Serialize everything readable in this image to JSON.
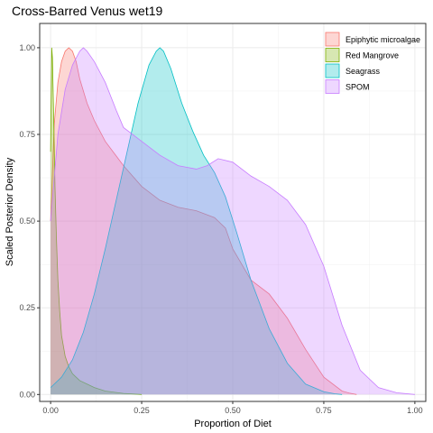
{
  "chart_data": {
    "type": "area",
    "title": "Cross-Barred Venus wet19",
    "xlabel": "Proportion of Diet",
    "ylabel": "Scaled Posterior Density",
    "xlim": [
      -0.03,
      1.03
    ],
    "ylim": [
      -0.02,
      1.07
    ],
    "x_ticks": [
      0,
      0.25,
      0.5,
      0.75,
      1.0
    ],
    "x_tick_labels": [
      "0.00",
      "0.25",
      "0.50",
      "0.75",
      "1.00"
    ],
    "y_ticks": [
      0,
      0.25,
      0.5,
      0.75,
      1.0
    ],
    "y_tick_labels": [
      "0.00",
      "0.25",
      "0.50",
      "0.75",
      "1.00"
    ],
    "grid": true,
    "legend_position": "top-right",
    "series": [
      {
        "name": "Epiphytic microalgae",
        "fill": "#F8766D",
        "stroke": "#F8766D",
        "x": [
          0.0,
          0.01,
          0.02,
          0.03,
          0.04,
          0.05,
          0.06,
          0.07,
          0.08,
          0.1,
          0.12,
          0.15,
          0.2,
          0.25,
          0.3,
          0.35,
          0.4,
          0.45,
          0.48,
          0.5,
          0.55,
          0.6,
          0.65,
          0.7,
          0.75,
          0.8,
          0.82,
          0.84
        ],
        "y": [
          0.5,
          0.78,
          0.9,
          0.96,
          0.99,
          1.0,
          0.99,
          0.96,
          0.91,
          0.84,
          0.79,
          0.73,
          0.66,
          0.6,
          0.56,
          0.54,
          0.53,
          0.51,
          0.48,
          0.42,
          0.33,
          0.29,
          0.22,
          0.13,
          0.05,
          0.01,
          0.004,
          0.0
        ]
      },
      {
        "name": "Red Mangrove",
        "fill": "#7CAE00",
        "stroke": "#7CAE00",
        "x": [
          0.0,
          0.003,
          0.005,
          0.008,
          0.012,
          0.016,
          0.02,
          0.025,
          0.03,
          0.04,
          0.05,
          0.06,
          0.08,
          0.1,
          0.12,
          0.15,
          0.2,
          0.25
        ],
        "y": [
          0.7,
          1.0,
          0.97,
          0.82,
          0.6,
          0.45,
          0.33,
          0.24,
          0.17,
          0.11,
          0.08,
          0.06,
          0.04,
          0.03,
          0.02,
          0.01,
          0.003,
          0.0
        ]
      },
      {
        "name": "Seagrass",
        "fill": "#00BFC4",
        "stroke": "#00BFC4",
        "x": [
          0.0,
          0.03,
          0.06,
          0.09,
          0.12,
          0.15,
          0.18,
          0.21,
          0.24,
          0.27,
          0.29,
          0.3,
          0.31,
          0.33,
          0.36,
          0.39,
          0.42,
          0.45,
          0.48,
          0.51,
          0.55,
          0.6,
          0.65,
          0.7,
          0.75,
          0.78,
          0.8
        ],
        "y": [
          0.02,
          0.05,
          0.1,
          0.18,
          0.29,
          0.42,
          0.56,
          0.7,
          0.84,
          0.95,
          0.99,
          1.0,
          0.99,
          0.94,
          0.84,
          0.76,
          0.69,
          0.64,
          0.57,
          0.47,
          0.33,
          0.19,
          0.09,
          0.03,
          0.008,
          0.002,
          0.0
        ]
      },
      {
        "name": "SPOM",
        "fill": "#C77CFF",
        "stroke": "#C77CFF",
        "x": [
          0.0,
          0.02,
          0.04,
          0.06,
          0.08,
          0.09,
          0.1,
          0.12,
          0.15,
          0.18,
          0.2,
          0.25,
          0.3,
          0.35,
          0.4,
          0.43,
          0.46,
          0.5,
          0.55,
          0.6,
          0.65,
          0.7,
          0.75,
          0.8,
          0.85,
          0.9,
          0.95,
          1.0
        ],
        "y": [
          0.5,
          0.75,
          0.88,
          0.95,
          0.99,
          1.0,
          0.99,
          0.96,
          0.9,
          0.82,
          0.77,
          0.73,
          0.69,
          0.66,
          0.65,
          0.66,
          0.68,
          0.67,
          0.63,
          0.6,
          0.56,
          0.49,
          0.37,
          0.2,
          0.07,
          0.02,
          0.005,
          0.0
        ]
      }
    ]
  }
}
